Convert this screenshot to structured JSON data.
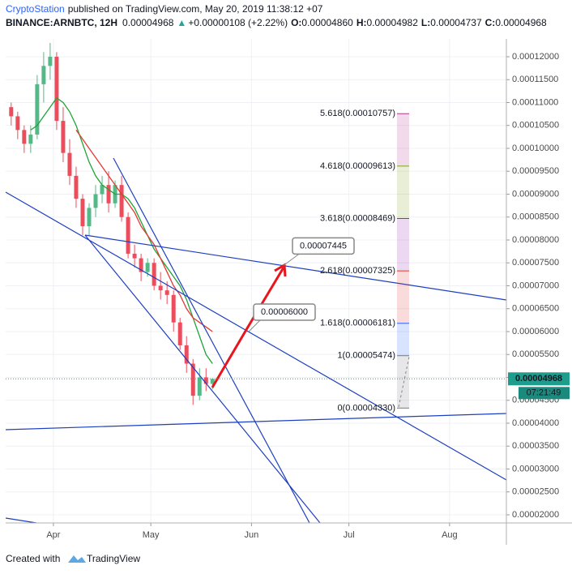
{
  "header": {
    "author": "CryptoStation",
    "published": "published on TradingView.com, May 20, 2019 11:38:12 +07",
    "symbol": "BINANCE:ARNBTC, 12H",
    "last": "0.00004968",
    "arrow": "▲",
    "change": "+0.00000108 (+2.22%)",
    "o_label": "O:",
    "o": "0.00004860",
    "h_label": "H:",
    "h": "0.00004982",
    "l_label": "L:",
    "l": "0.00004737",
    "c_label": "C:",
    "c": "0.00004968"
  },
  "footer": {
    "text": "Created with",
    "brand": "TradingView"
  },
  "chart_data": {
    "type": "candlestick",
    "up_color": "#53b987",
    "down_color": "#eb4d5c",
    "grid": true,
    "xlim": [
      76.3,
      230.5
    ],
    "xticks": [
      {
        "value": 91,
        "label": "Apr"
      },
      {
        "value": 121,
        "label": "May"
      },
      {
        "value": 152,
        "label": "Jun"
      },
      {
        "value": 182,
        "label": "Jul"
      },
      {
        "value": 213,
        "label": "Aug"
      }
    ],
    "ylim": [
      1.823e-05,
      0.00012389
    ],
    "yticks": [
      {
        "value": 2e-05,
        "label": "0.00002000"
      },
      {
        "value": 2.5e-05,
        "label": "0.00002500"
      },
      {
        "value": 3e-05,
        "label": "0.00003000"
      },
      {
        "value": 3.5e-05,
        "label": "0.00003500"
      },
      {
        "value": 4e-05,
        "label": "0.00004000"
      },
      {
        "value": 4.5e-05,
        "label": "0.00004500"
      },
      {
        "value": 5e-05,
        "label": "0.00005000"
      },
      {
        "value": 5.5e-05,
        "label": "0.00005500"
      },
      {
        "value": 6e-05,
        "label": "0.00006000"
      },
      {
        "value": 6.5e-05,
        "label": "0.00006500"
      },
      {
        "value": 7e-05,
        "label": "0.00007000"
      },
      {
        "value": 7.5e-05,
        "label": "0.00007500"
      },
      {
        "value": 8e-05,
        "label": "0.00008000"
      },
      {
        "value": 8.5e-05,
        "label": "0.00008500"
      },
      {
        "value": 9e-05,
        "label": "0.00009000"
      },
      {
        "value": 9.5e-05,
        "label": "0.00009500"
      },
      {
        "value": 0.0001,
        "label": "0.00010000"
      },
      {
        "value": 0.000105,
        "label": "0.00010500"
      },
      {
        "value": 0.00011,
        "label": "0.00011000"
      },
      {
        "value": 0.000115,
        "label": "0.00011500"
      },
      {
        "value": 0.00012,
        "label": "0.00012000"
      }
    ],
    "x": [
      78,
      80,
      82,
      84,
      86,
      88,
      90,
      92,
      94,
      96,
      98,
      100,
      102,
      104,
      106,
      108,
      110,
      112,
      114,
      116,
      118,
      120,
      122,
      124,
      126,
      128,
      130,
      132,
      134,
      136,
      138,
      140
    ],
    "open": [
      0.000109,
      0.000107,
      0.000104,
      0.000101,
      0.000103,
      0.000114,
      0.000118,
      0.00012,
      0.000106,
      9.9e-05,
      9.4e-05,
      8.9e-05,
      8.3e-05,
      8.7e-05,
      9e-05,
      9.2e-05,
      8.8e-05,
      9.2e-05,
      8.5e-05,
      7.7e-05,
      7.6e-05,
      7.3e-05,
      7.5e-05,
      7e-05,
      6.9e-05,
      6.8e-05,
      6.2e-05,
      5.7e-05,
      5.3e-05,
      4.6e-05,
      5e-05,
      4.86e-05
    ],
    "high": [
      0.00011,
      0.000108,
      0.000105,
      0.000105,
      0.000116,
      0.000121,
      0.000123,
      0.000121,
      0.000109,
      0.000102,
      9.6e-05,
      9e-05,
      8.8e-05,
      9.2e-05,
      9.4e-05,
      9.5e-05,
      9.3e-05,
      9.4e-05,
      8.6e-05,
      7.9e-05,
      7.7e-05,
      7.6e-05,
      7.6e-05,
      7.3e-05,
      7.1e-05,
      6.9e-05,
      6.3e-05,
      5.9e-05,
      5.4e-05,
      5.2e-05,
      5.2e-05,
      4.982e-05
    ],
    "low": [
      0.000105,
      0.000102,
      9.9e-05,
      9.9e-05,
      0.000102,
      0.00011,
      0.000115,
      0.000104,
      9.7e-05,
      9.2e-05,
      8.7e-05,
      8.1e-05,
      8.1e-05,
      8.5e-05,
      8.8e-05,
      8.6e-05,
      8.7e-05,
      8.4e-05,
      7.6e-05,
      7.4e-05,
      7.1e-05,
      7.2e-05,
      6.9e-05,
      6.7e-05,
      6.6e-05,
      6e-05,
      5.6e-05,
      5.1e-05,
      4.4e-05,
      4.5e-05,
      4.7e-05,
      4.737e-05
    ],
    "close": [
      0.000107,
      0.000104,
      0.000101,
      0.000103,
      0.000114,
      0.000118,
      0.00012,
      0.000106,
      9.9e-05,
      9.4e-05,
      8.9e-05,
      8.3e-05,
      8.7e-05,
      9e-05,
      9.2e-05,
      8.8e-05,
      9.2e-05,
      8.5e-05,
      7.7e-05,
      7.6e-05,
      7.3e-05,
      7.5e-05,
      7e-05,
      6.9e-05,
      6.8e-05,
      6.2e-05,
      5.7e-05,
      5.3e-05,
      4.6e-05,
      5e-05,
      4.86e-05,
      4.968e-05
    ],
    "lines": [
      {
        "color": "#21a336",
        "values": [
          null,
          null,
          null,
          0.000104,
          0.000105,
          0.000107,
          0.000109,
          0.000111,
          0.00011,
          0.000108,
          0.000105,
          0.000101,
          9.7e-05,
          9.4e-05,
          9.2e-05,
          9.1e-05,
          9e-05,
          9e-05,
          8.9e-05,
          8.7e-05,
          8.4e-05,
          8.1e-05,
          7.8e-05,
          7.6e-05,
          7.4e-05,
          7.2e-05,
          7e-05,
          6.7e-05,
          6.3e-05,
          5.9e-05,
          5.5e-05,
          5.3e-05
        ]
      },
      {
        "color": "#e53935",
        "values": [
          null,
          null,
          null,
          null,
          null,
          null,
          null,
          null,
          null,
          null,
          0.000104,
          0.000102,
          0.0001,
          9.8e-05,
          9.6e-05,
          9.4e-05,
          9.2e-05,
          9e-05,
          8.8e-05,
          8.6e-05,
          8.3e-05,
          8.1e-05,
          7.9e-05,
          7.6e-05,
          7.3e-05,
          7e-05,
          6.8e-05,
          6.5e-05,
          6.3e-05,
          6.2e-05,
          6.1e-05,
          6e-05
        ]
      }
    ],
    "fib_levels": [
      {
        "value": 4.33e-05,
        "label": "0(0.00004330)",
        "color": "#787b86"
      },
      {
        "value": 5.474e-05,
        "label": "1(0.00005474)",
        "color": "#787b86"
      },
      {
        "value": 6.181e-05,
        "label": "1.618(0.00006181)",
        "color": "#2962ff"
      },
      {
        "value": 7.325e-05,
        "label": "2.618(0.00007325)",
        "color": "#e53935"
      },
      {
        "value": 8.469e-05,
        "label": "3.618(0.00008469)",
        "color": "#9c27b0"
      },
      {
        "value": 9.613e-05,
        "label": "4.618(0.00009613)",
        "color": "#81a51a"
      },
      {
        "value": 0.00010757,
        "label": "5.618(0.00010757)",
        "color": "#b0358a"
      }
    ],
    "callouts": [
      7.445e-05,
      {
        "value": 6e-05,
        "label": "0.00006000"
      }
    ],
    "last_price": 4.968e-05,
    "countdown": "07:21:49"
  }
}
